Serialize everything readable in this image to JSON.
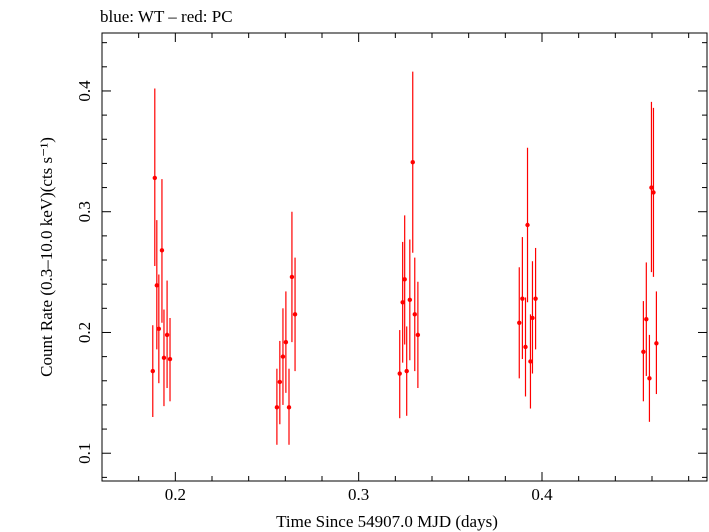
{
  "header": {
    "title": "blue: WT – red: PC"
  },
  "colors": {
    "pc": "#ff0000",
    "axis": "#000000"
  },
  "chart_data": {
    "type": "scatter",
    "title": "blue: WT – red: PC",
    "xlabel": "Time Since 54907.0 MJD (days)",
    "ylabel": "Count Rate (0.3–10.0 keV)(cts s⁻¹)",
    "xlim": [
      0.16,
      0.49
    ],
    "ylim": [
      0.077,
      0.448
    ],
    "xticks": [
      0.2,
      0.3,
      0.4
    ],
    "xtick_labels": [
      "0.2",
      "0.3",
      "0.4"
    ],
    "yticks": [
      0.1,
      0.2,
      0.3,
      0.4
    ],
    "ytick_labels": [
      "0.1",
      "0.2",
      "0.3",
      "0.4"
    ],
    "series": [
      {
        "name": "PC",
        "color": "#ff0000",
        "points": [
          {
            "x": 0.1877,
            "y": 0.168,
            "lo": 0.13,
            "hi": 0.206
          },
          {
            "x": 0.1888,
            "y": 0.328,
            "lo": 0.255,
            "hi": 0.402
          },
          {
            "x": 0.1899,
            "y": 0.239,
            "lo": 0.186,
            "hi": 0.293
          },
          {
            "x": 0.191,
            "y": 0.203,
            "lo": 0.158,
            "hi": 0.248
          },
          {
            "x": 0.1927,
            "y": 0.268,
            "lo": 0.208,
            "hi": 0.327
          },
          {
            "x": 0.1938,
            "y": 0.179,
            "lo": 0.139,
            "hi": 0.219
          },
          {
            "x": 0.1955,
            "y": 0.198,
            "lo": 0.154,
            "hi": 0.243
          },
          {
            "x": 0.1971,
            "y": 0.178,
            "lo": 0.143,
            "hi": 0.212
          },
          {
            "x": 0.2554,
            "y": 0.138,
            "lo": 0.107,
            "hi": 0.17
          },
          {
            "x": 0.257,
            "y": 0.159,
            "lo": 0.124,
            "hi": 0.193
          },
          {
            "x": 0.2587,
            "y": 0.18,
            "lo": 0.14,
            "hi": 0.22
          },
          {
            "x": 0.2603,
            "y": 0.192,
            "lo": 0.15,
            "hi": 0.234
          },
          {
            "x": 0.262,
            "y": 0.138,
            "lo": 0.107,
            "hi": 0.17
          },
          {
            "x": 0.2636,
            "y": 0.246,
            "lo": 0.192,
            "hi": 0.3
          },
          {
            "x": 0.2653,
            "y": 0.215,
            "lo": 0.168,
            "hi": 0.262
          },
          {
            "x": 0.3224,
            "y": 0.166,
            "lo": 0.129,
            "hi": 0.202
          },
          {
            "x": 0.324,
            "y": 0.225,
            "lo": 0.175,
            "hi": 0.275
          },
          {
            "x": 0.3251,
            "y": 0.244,
            "lo": 0.19,
            "hi": 0.297
          },
          {
            "x": 0.3262,
            "y": 0.168,
            "lo": 0.131,
            "hi": 0.205
          },
          {
            "x": 0.3279,
            "y": 0.227,
            "lo": 0.177,
            "hi": 0.277
          },
          {
            "x": 0.3295,
            "y": 0.341,
            "lo": 0.266,
            "hi": 0.416
          },
          {
            "x": 0.3306,
            "y": 0.215,
            "lo": 0.168,
            "hi": 0.262
          },
          {
            "x": 0.3323,
            "y": 0.198,
            "lo": 0.154,
            "hi": 0.242
          },
          {
            "x": 0.3876,
            "y": 0.208,
            "lo": 0.162,
            "hi": 0.254
          },
          {
            "x": 0.3893,
            "y": 0.228,
            "lo": 0.178,
            "hi": 0.279
          },
          {
            "x": 0.391,
            "y": 0.188,
            "lo": 0.147,
            "hi": 0.229
          },
          {
            "x": 0.3921,
            "y": 0.289,
            "lo": 0.225,
            "hi": 0.353
          },
          {
            "x": 0.3937,
            "y": 0.176,
            "lo": 0.137,
            "hi": 0.215
          },
          {
            "x": 0.3948,
            "y": 0.212,
            "lo": 0.166,
            "hi": 0.259
          },
          {
            "x": 0.3965,
            "y": 0.228,
            "lo": 0.186,
            "hi": 0.27
          },
          {
            "x": 0.4553,
            "y": 0.184,
            "lo": 0.143,
            "hi": 0.226
          },
          {
            "x": 0.4569,
            "y": 0.211,
            "lo": 0.164,
            "hi": 0.258
          },
          {
            "x": 0.4586,
            "y": 0.162,
            "lo": 0.126,
            "hi": 0.198
          },
          {
            "x": 0.4597,
            "y": 0.32,
            "lo": 0.25,
            "hi": 0.391
          },
          {
            "x": 0.4608,
            "y": 0.316,
            "lo": 0.246,
            "hi": 0.386
          },
          {
            "x": 0.4624,
            "y": 0.191,
            "lo": 0.149,
            "hi": 0.234
          }
        ]
      }
    ],
    "grid": false
  }
}
